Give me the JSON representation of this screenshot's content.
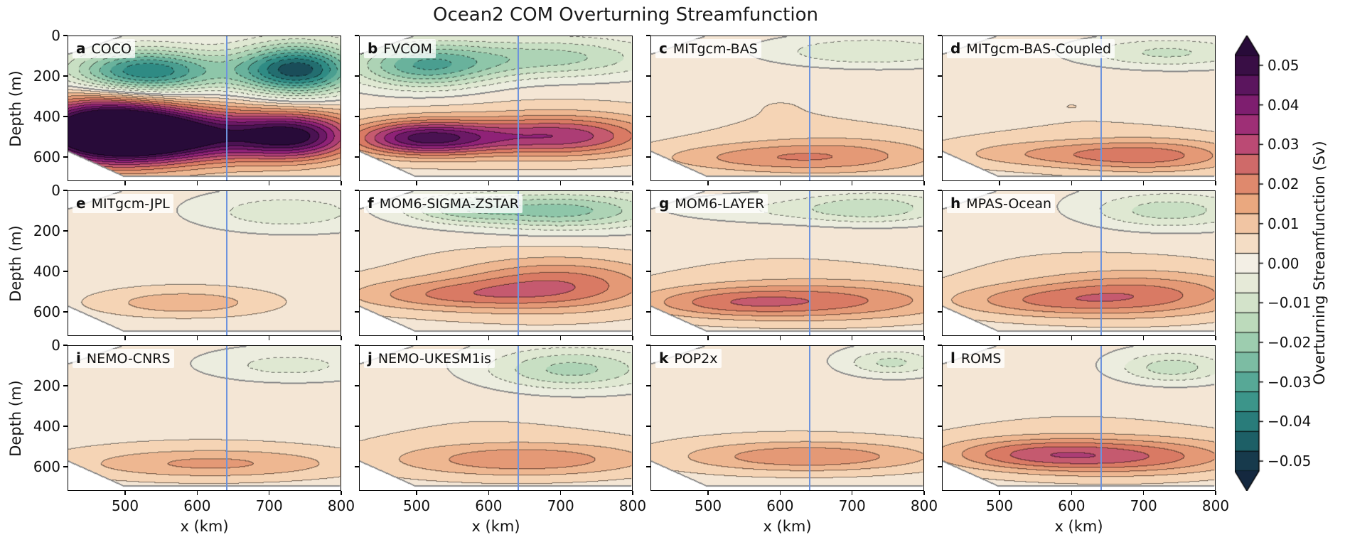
{
  "chart_data": {
    "type": "heatmap",
    "title": "Ocean2 COM Overturning Streamfunction",
    "xlabel": "x (km)",
    "ylabel": "Depth (m)",
    "x_range": [
      420,
      800
    ],
    "depth_range": [
      0,
      720
    ],
    "x_ticks": [
      500,
      600,
      700,
      800
    ],
    "depth_ticks": [
      0,
      200,
      400,
      600
    ],
    "grid": {
      "rows": 3,
      "cols": 4
    },
    "ice_front_x_km": 640,
    "ice_front_color": "#6d93dd",
    "colorbar": {
      "label": "Overturning Streamfunction (Sv)",
      "tick_values": [
        0.05,
        0.04,
        0.03,
        0.02,
        0.01,
        0.0,
        -0.01,
        -0.02,
        -0.03,
        -0.04,
        -0.05
      ],
      "tick_labels": [
        "0.05",
        "0.04",
        "0.03",
        "0.02",
        "0.01",
        "0.00",
        "−0.01",
        "−0.02",
        "−0.03",
        "−0.04",
        "−0.05"
      ],
      "vmin": -0.0525,
      "vmax": 0.0525,
      "band_step": 0.005,
      "colormap_stops": [
        [
          0.0525,
          "#280b39"
        ],
        [
          0.045,
          "#5b155e"
        ],
        [
          0.0375,
          "#8f2277"
        ],
        [
          0.03,
          "#bb4a74"
        ],
        [
          0.0225,
          "#d97a64"
        ],
        [
          0.015,
          "#eaa87f"
        ],
        [
          0.0075,
          "#f5d4b5"
        ],
        [
          0.0,
          "#f3efe5"
        ],
        [
          -0.0075,
          "#dfe8d2"
        ],
        [
          -0.015,
          "#bcdabb"
        ],
        [
          -0.0225,
          "#8ec6a9"
        ],
        [
          -0.03,
          "#57a896"
        ],
        [
          -0.0375,
          "#2f8b84"
        ],
        [
          -0.045,
          "#1d5f66"
        ],
        [
          -0.0525,
          "#14283f"
        ]
      ]
    },
    "bathymetry": {
      "left_depth_m": 575,
      "slope_m_per_km": 1.6,
      "max_depth_m": 700
    },
    "ice_top": {
      "left_depth_m": 90,
      "slope_m_per_km": 1.2
    },
    "cell_format": "[amplitude_sv, x_center_km, x_sigma_km, depth_center_m, depth_sigma_m]",
    "panels": [
      {
        "letter": "a",
        "model": "COCO",
        "cells": [
          [
            0.055,
            470,
            70,
            470,
            110
          ],
          [
            0.045,
            560,
            90,
            500,
            90
          ],
          [
            0.042,
            735,
            60,
            500,
            80
          ],
          [
            -0.045,
            530,
            75,
            180,
            80
          ],
          [
            -0.052,
            740,
            60,
            170,
            90
          ],
          [
            0.008,
            620,
            300,
            430,
            250
          ]
        ]
      },
      {
        "letter": "b",
        "model": "FVCOM",
        "cells": [
          [
            0.04,
            510,
            70,
            510,
            60
          ],
          [
            0.028,
            700,
            90,
            500,
            70
          ],
          [
            -0.03,
            510,
            70,
            150,
            80
          ],
          [
            -0.018,
            690,
            100,
            110,
            70
          ],
          [
            0.006,
            620,
            300,
            460,
            200
          ]
        ]
      },
      {
        "letter": "c",
        "model": "MITgcm-BAS",
        "cells": [
          [
            0.012,
            690,
            110,
            600,
            70
          ],
          [
            0.009,
            550,
            110,
            610,
            50
          ],
          [
            -0.013,
            720,
            100,
            80,
            55
          ],
          [
            0.005,
            600,
            280,
            350,
            300
          ]
        ]
      },
      {
        "letter": "d",
        "model": "MITgcm-BAS-Coupled",
        "cells": [
          [
            0.016,
            720,
            90,
            600,
            60
          ],
          [
            0.01,
            570,
            110,
            590,
            50
          ],
          [
            -0.014,
            730,
            90,
            85,
            55
          ],
          [
            0.005,
            600,
            280,
            350,
            300
          ]
        ]
      },
      {
        "letter": "e",
        "model": "MITgcm-JPL",
        "cells": [
          [
            0.011,
            580,
            80,
            560,
            45
          ],
          [
            -0.011,
            720,
            90,
            110,
            70
          ],
          [
            0.004,
            600,
            280,
            350,
            300
          ]
        ]
      },
      {
        "letter": "f",
        "model": "MOM6-SIGMA-ZSTAR",
        "cells": [
          [
            0.019,
            700,
            100,
            470,
            90
          ],
          [
            0.013,
            540,
            100,
            520,
            55
          ],
          [
            -0.024,
            700,
            100,
            100,
            65
          ],
          [
            -0.012,
            555,
            55,
            95,
            45
          ],
          [
            0.005,
            600,
            300,
            450,
            250
          ]
        ]
      },
      {
        "letter": "g",
        "model": "MOM6-LAYER",
        "cells": [
          [
            0.017,
            660,
            140,
            550,
            70
          ],
          [
            0.01,
            520,
            90,
            560,
            50
          ],
          [
            -0.013,
            735,
            70,
            85,
            55
          ],
          [
            -0.007,
            610,
            110,
            95,
            50
          ],
          [
            0.005,
            600,
            300,
            400,
            250
          ]
        ]
      },
      {
        "letter": "h",
        "model": "MPAS-Ocean",
        "cells": [
          [
            0.017,
            700,
            110,
            520,
            80
          ],
          [
            0.011,
            550,
            100,
            550,
            55
          ],
          [
            -0.015,
            735,
            80,
            100,
            65
          ],
          [
            0.005,
            600,
            300,
            400,
            250
          ]
        ]
      },
      {
        "letter": "i",
        "model": "NEMO-CNRS",
        "cells": [
          [
            0.013,
            620,
            140,
            590,
            55
          ],
          [
            -0.009,
            725,
            80,
            100,
            55
          ],
          [
            0.004,
            600,
            300,
            400,
            280
          ]
        ]
      },
      {
        "letter": "j",
        "model": "NEMO-UKESM1is",
        "cells": [
          [
            0.015,
            650,
            130,
            570,
            60
          ],
          [
            -0.019,
            715,
            85,
            120,
            75
          ],
          [
            0.005,
            600,
            300,
            420,
            260
          ]
        ]
      },
      {
        "letter": "k",
        "model": "POP2x",
        "cells": [
          [
            0.016,
            640,
            130,
            555,
            55
          ],
          [
            -0.013,
            755,
            45,
            85,
            45
          ],
          [
            0.004,
            600,
            300,
            400,
            260
          ]
        ]
      },
      {
        "letter": "l",
        "model": "ROMS",
        "cells": [
          [
            0.019,
            680,
            120,
            555,
            65
          ],
          [
            0.014,
            540,
            90,
            540,
            55
          ],
          [
            -0.015,
            740,
            55,
            110,
            55
          ],
          [
            0.005,
            600,
            300,
            420,
            260
          ]
        ]
      }
    ]
  }
}
